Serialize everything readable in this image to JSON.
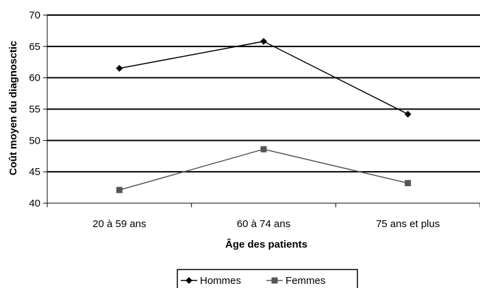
{
  "chart_data": {
    "type": "line",
    "categories": [
      "20 à 59 ans",
      "60 à 74 ans",
      "75 ans et plus"
    ],
    "series": [
      {
        "name": "Hommes",
        "values": [
          61.5,
          65.8,
          54.2
        ],
        "color": "#000000",
        "marker": "diamond"
      },
      {
        "name": "Femmes",
        "values": [
          42.1,
          48.6,
          43.2
        ],
        "color": "#555555",
        "marker": "square"
      }
    ],
    "title": "",
    "xlabel": "Âge des patients",
    "ylabel": "Coût moyen du diagnosctic",
    "ylim": [
      40,
      70
    ],
    "yticks": [
      40,
      45,
      50,
      55,
      60,
      65,
      70
    ],
    "grid": true,
    "legend_position": "bottom"
  }
}
